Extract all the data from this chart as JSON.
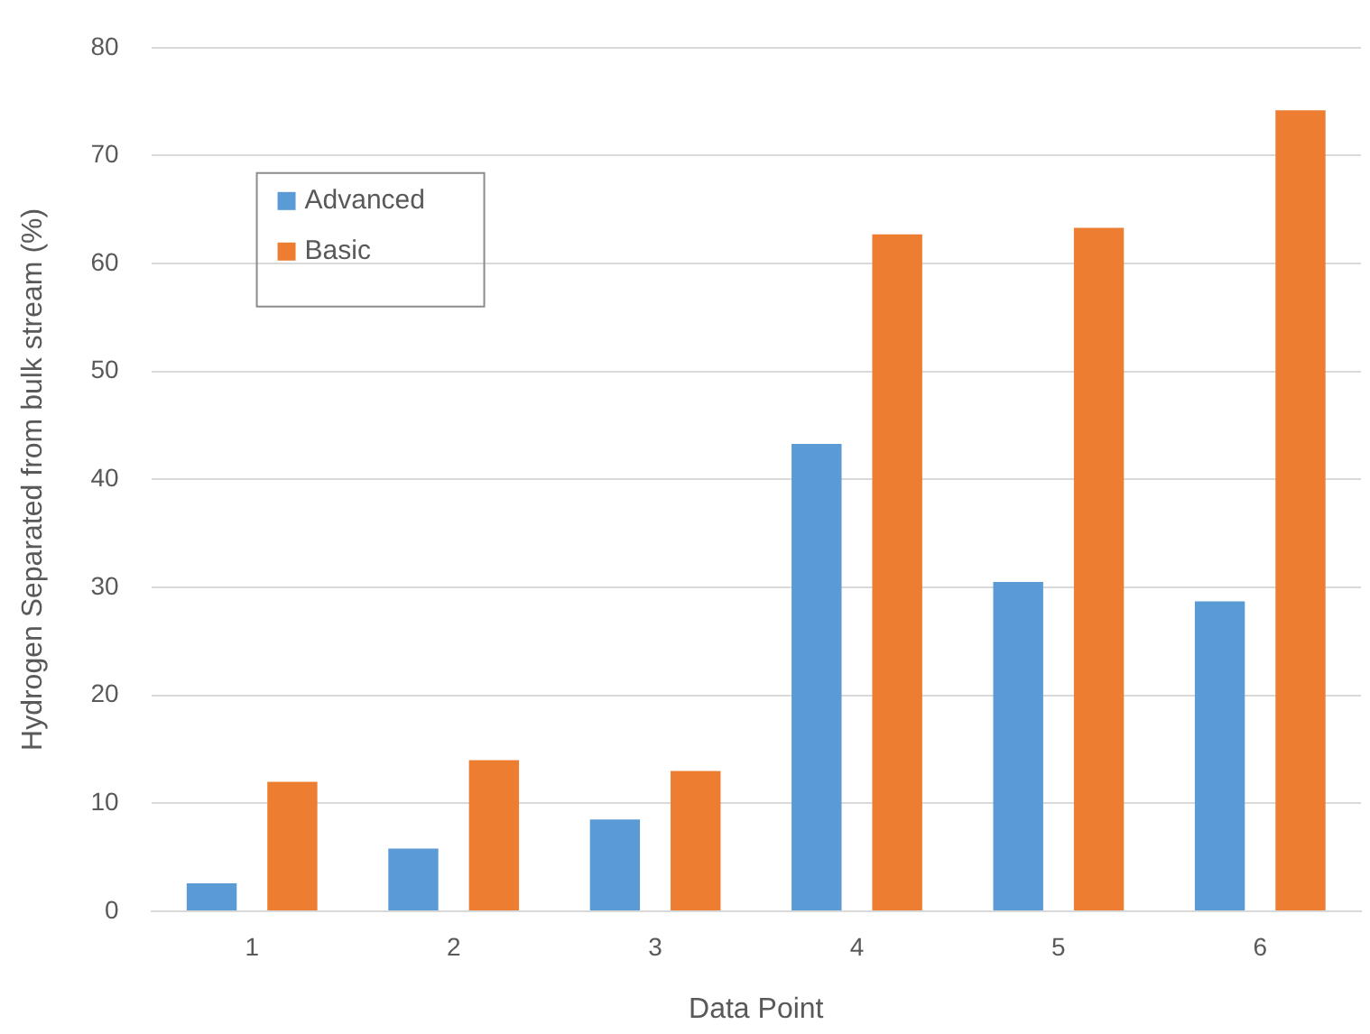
{
  "chart_data": {
    "type": "bar",
    "xlabel": "Data Point",
    "ylabel": "Hydrogen Separated from bulk stream (%)",
    "categories": [
      "1",
      "2",
      "3",
      "4",
      "5",
      "6"
    ],
    "series": [
      {
        "name": "Advanced",
        "color": "#5b9bd5",
        "values": [
          2.6,
          5.8,
          8.5,
          43.3,
          30.5,
          28.7
        ]
      },
      {
        "name": "Basic",
        "color": "#ed7d31",
        "values": [
          12.0,
          14.0,
          13.0,
          62.7,
          63.3,
          74.2
        ]
      }
    ],
    "ylim": [
      0,
      80
    ],
    "yticks": [
      0,
      10,
      20,
      30,
      40,
      50,
      60,
      70,
      80
    ],
    "grid": "y",
    "legend": "top left"
  }
}
